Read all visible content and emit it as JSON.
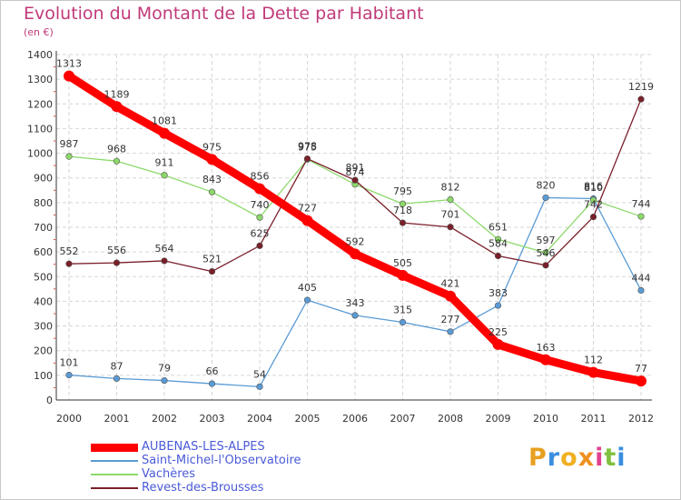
{
  "chart_data": {
    "type": "line",
    "title": "Evolution du Montant de la Dette par Habitant",
    "subtitle": "(en €)",
    "x": [
      "2000",
      "2001",
      "2002",
      "2003",
      "2004",
      "2005",
      "2006",
      "2007",
      "2008",
      "2009",
      "2010",
      "2011",
      "2012"
    ],
    "ylim": [
      0,
      1400
    ],
    "yticks": [
      "0",
      "100",
      "200",
      "300",
      "400",
      "500",
      "600",
      "700",
      "800",
      "900",
      "1000",
      "1100",
      "1200",
      "1300",
      "1400"
    ],
    "grid": true,
    "legend_position": "bottom-left",
    "series": [
      {
        "name": "AUBENAS-LES-ALPES",
        "color": "#ff0000",
        "values": [
          1313,
          1189,
          1081,
          975,
          856,
          727,
          592,
          505,
          421,
          225,
          163,
          112,
          77
        ]
      },
      {
        "name": "Saint-Michel-l'Observatoire",
        "color": "#5b9bd5",
        "values": [
          101,
          87,
          79,
          66,
          54,
          405,
          343,
          315,
          277,
          383,
          820,
          816,
          444
        ]
      },
      {
        "name": "Vachères",
        "color": "#8cd96a",
        "values": [
          987,
          968,
          911,
          843,
          740,
          975,
          874,
          795,
          812,
          651,
          597,
          810,
          744
        ]
      },
      {
        "name": "Revest-des-Brousses",
        "color": "#7a1f2a",
        "values": [
          552,
          556,
          564,
          521,
          625,
          978,
          891,
          718,
          701,
          584,
          546,
          742,
          1219
        ]
      }
    ]
  },
  "brand": {
    "letters": [
      "P",
      "r",
      "o",
      "x",
      "i",
      "t",
      "i"
    ],
    "colors": [
      "#e8a020",
      "#3a8ee0",
      "#f0b020",
      "#f09020",
      "#e04090",
      "#80c040",
      "#3a8ee0"
    ]
  }
}
